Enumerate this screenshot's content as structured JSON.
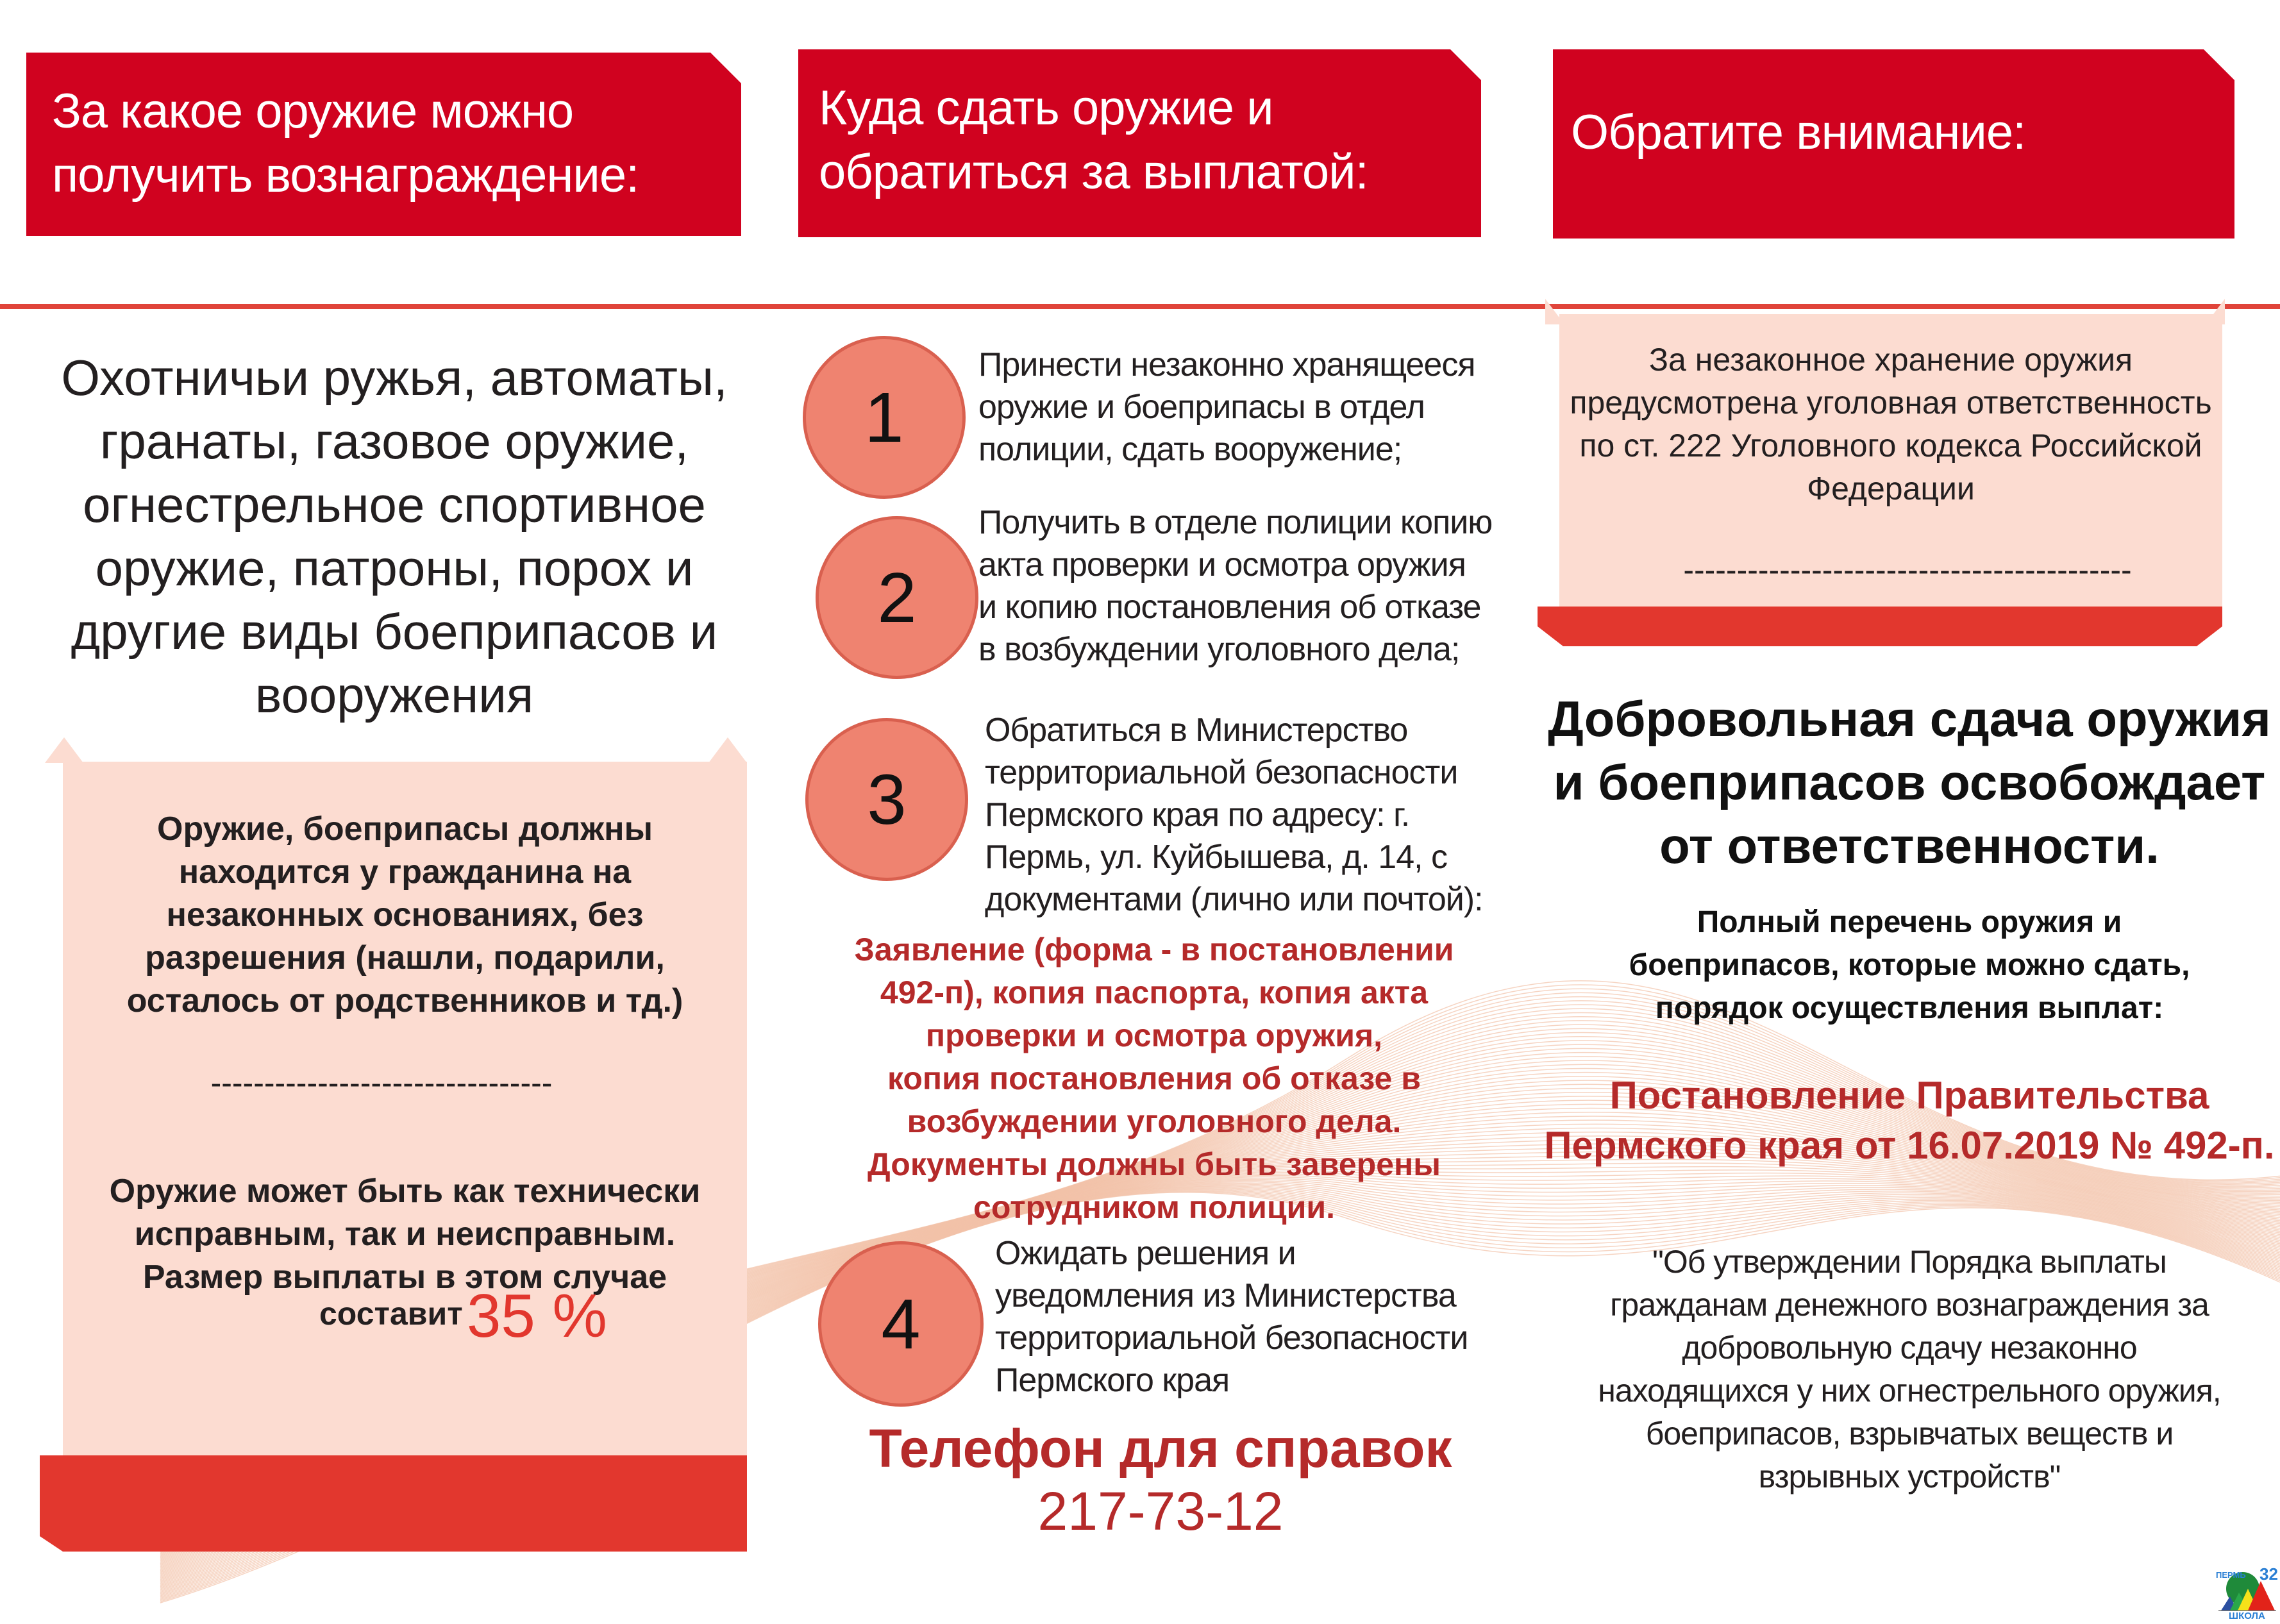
{
  "columns": [
    {
      "header": [
        "За какое оружие можно",
        "получить вознаграждение:"
      ],
      "intro": [
        "Охотничьи ружья, автоматы,",
        "гранаты, газовое оружие,",
        "огнестрельное спортивное",
        "оружие, патроны, порох и",
        "другие виды боеприпасов и",
        "вооружения"
      ],
      "box_text_1": [
        "Оружие, боеприпасы должны",
        "находится у гражданина на",
        "незаконных основаниях, без",
        "разрешения (нашли, подарили,",
        "осталось от родственников и тд.)"
      ],
      "divider": "--------------------------------",
      "box_text_2": [
        "Оружие может быть как технически",
        "исправным, так и неисправным.",
        "Размер выплаты в этом случае"
      ],
      "payout_prefix": "составит",
      "payout_value": "35 %"
    },
    {
      "header": [
        "Куда сдать оружие и",
        "обратиться за выплатой:"
      ],
      "steps": [
        {
          "number": "1",
          "lines": [
            "Принести  незаконно хранящееся",
            "оружие и боеприпасы в отдел",
            "полиции, сдать вооружение;"
          ]
        },
        {
          "number": "2",
          "lines": [
            "Получить в отделе полиции копию",
            "акта проверки и осмотра оружия",
            "и копию постановления об отказе",
            "в возбуждении уголовного дела;"
          ]
        },
        {
          "number": "3",
          "lines": [
            "Обратиться в Министерство",
            "территориальной безопасности",
            "Пермского края по адресу: г.",
            "Пермь, ул. Куйбышева, д. 14,  с",
            "документами (лично или почтой):"
          ]
        },
        {
          "number": "4",
          "lines": [
            "Ожидать решения и",
            "уведомления из Министерства",
            "территориальной безопасности",
            "Пермского края"
          ]
        }
      ],
      "documents": [
        "Заявление (форма - в постановлении",
        "492-п),   копия паспорта,    копия акта",
        "проверки и осмотра оружия,",
        "копия постановления об отказе в",
        "возбуждении уголовного дела.",
        "Документы должны быть заверены",
        "сотрудником полиции."
      ],
      "phone_label": "Телефон для справок",
      "phone_number": "217-73-12"
    },
    {
      "header": [
        "Обратите внимание:"
      ],
      "notice": [
        "За незаконное хранение оружия",
        "предусмотрена уголовная ответственность",
        "по ст. 222 Уголовного кодекса Российской",
        "Федерации"
      ],
      "divider": "------------------------------------------",
      "headline": [
        "Добровольная сдача оружия",
        "и боеприпасов освобождает",
        "от ответственности."
      ],
      "subtext": [
        "Полный перечень оружия и",
        "боеприпасов, которые можно сдать,",
        "порядок осуществления выплат:"
      ],
      "decree": [
        "Постановление Правительства",
        "Пермского края от 16.07.2019 № 492-п."
      ],
      "decree_title": [
        "\"Об утверждении Порядка выплаты",
        "гражданам денежного вознаграждения за",
        "добровольную сдачу незаконно",
        "находящихся у них огнестрельного оружия,",
        "боеприпасов, взрывчатых веществ и",
        "взрывных устройств\""
      ]
    }
  ],
  "logo": {
    "city": "ПЕРМЬ",
    "school": "ШКОЛА",
    "number": "32"
  },
  "colors": {
    "header_red": "#d0021f",
    "bar_red": "#e2372e",
    "pink": "#fcdcd1",
    "circle": "#ef8370",
    "accent_text": "#b52a2a"
  }
}
